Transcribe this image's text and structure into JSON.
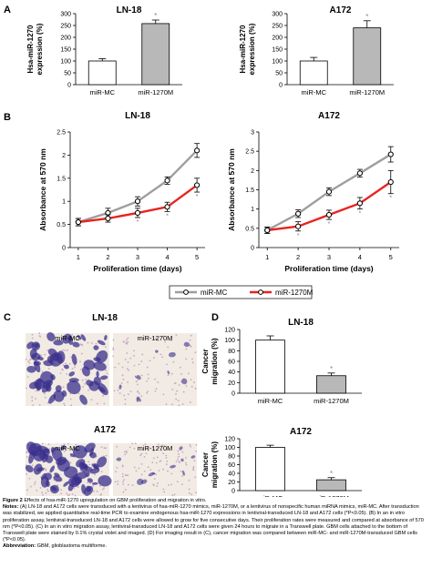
{
  "panel_letters": [
    "A",
    "B",
    "C",
    "D"
  ],
  "colors": {
    "control": "#9e9e9e",
    "treated": "#e8231f",
    "bar_control": "#ffffff",
    "bar_treated": "#b8b8b8",
    "stain": "#3a2f8c"
  },
  "chart_data": [
    {
      "id": "A-LN18",
      "type": "bar",
      "panel": "A",
      "title": "LN-18",
      "ylabel": "Hsa-miR-1270 expression (%)",
      "categories": [
        "miR-MC",
        "miR-1270M"
      ],
      "values": [
        100,
        258
      ],
      "errors": [
        10,
        15
      ],
      "significant": [
        false,
        true
      ],
      "yticks": [
        0,
        50,
        100,
        150,
        200,
        250,
        300
      ],
      "ylim": [
        0,
        300
      ]
    },
    {
      "id": "A-A172",
      "type": "bar",
      "panel": "A",
      "title": "A172",
      "ylabel": "Hsa-miR-1270 expression (%)",
      "categories": [
        "miR-MC",
        "miR-1270M"
      ],
      "values": [
        100,
        240
      ],
      "errors": [
        15,
        30
      ],
      "significant": [
        false,
        true
      ],
      "yticks": [
        0,
        50,
        100,
        150,
        200,
        250,
        300
      ],
      "ylim": [
        0,
        300
      ]
    },
    {
      "id": "B-LN18",
      "type": "line",
      "panel": "B",
      "title": "LN-18",
      "xlabel": "Proliferation time (days)",
      "ylabel": "Absorbance at 570 nm",
      "x": [
        1,
        2,
        3,
        4,
        5
      ],
      "xticks": [
        1,
        2,
        3,
        4,
        5
      ],
      "yticks": [
        0,
        0.5,
        1,
        1.5,
        2,
        2.5
      ],
      "ylim": [
        0,
        2.5
      ],
      "series": [
        {
          "name": "miR-MC",
          "values": [
            0.55,
            0.75,
            1.0,
            1.45,
            2.1
          ],
          "errors": [
            0.08,
            0.1,
            0.1,
            0.08,
            0.15
          ]
        },
        {
          "name": "miR-1270M",
          "values": [
            0.55,
            0.63,
            0.75,
            0.88,
            1.35
          ],
          "errors": [
            0.08,
            0.08,
            0.1,
            0.1,
            0.15
          ],
          "significant": [
            false,
            false,
            true,
            true,
            true
          ]
        }
      ]
    },
    {
      "id": "B-A172",
      "type": "line",
      "panel": "B",
      "title": "A172",
      "xlabel": "Proliferation time (days)",
      "ylabel": "Absorbance at 570 nm",
      "x": [
        1,
        2,
        3,
        4,
        5
      ],
      "xticks": [
        1,
        2,
        3,
        4,
        5
      ],
      "yticks": [
        0,
        0.5,
        1,
        1.5,
        2,
        2.5,
        3
      ],
      "ylim": [
        0,
        3
      ],
      "series": [
        {
          "name": "miR-MC",
          "values": [
            0.45,
            0.88,
            1.45,
            1.93,
            2.42
          ],
          "errors": [
            0.08,
            0.1,
            0.1,
            0.1,
            0.2
          ]
        },
        {
          "name": "miR-1270M",
          "values": [
            0.45,
            0.55,
            0.85,
            1.15,
            1.7
          ],
          "errors": [
            0.08,
            0.12,
            0.12,
            0.15,
            0.3
          ],
          "significant": [
            false,
            true,
            true,
            true,
            true
          ]
        }
      ]
    },
    {
      "id": "D-LN18",
      "type": "bar",
      "panel": "D",
      "title": "LN-18",
      "ylabel": "Cancer migration (%)",
      "categories": [
        "miR-MC",
        "miR-1270M"
      ],
      "values": [
        100,
        33
      ],
      "errors": [
        8,
        5
      ],
      "significant": [
        false,
        true
      ],
      "yticks": [
        0,
        20,
        40,
        60,
        80,
        100,
        120
      ],
      "ylim": [
        0,
        120
      ]
    },
    {
      "id": "D-A172",
      "type": "bar",
      "panel": "D",
      "title": "A172",
      "ylabel": "Cancer migration (%)",
      "categories": [
        "miR-MC",
        "miR-1270M"
      ],
      "values": [
        100,
        25
      ],
      "errors": [
        5,
        5
      ],
      "significant": [
        false,
        true
      ],
      "yticks": [
        0,
        20,
        40,
        60,
        80,
        100,
        120
      ],
      "ylim": [
        0,
        120
      ]
    }
  ],
  "legend": {
    "items": [
      "miR-MC",
      "miR-1270M"
    ]
  },
  "significance_mark": "*",
  "panel_c": {
    "lines": [
      "LN-18",
      "A172"
    ],
    "columns": [
      "miR-MC",
      "miR-1270M"
    ]
  },
  "caption": {
    "figure_label": "Figure 2",
    "figure_title": "Effects of hsa-miR-1270 upregulation on GBM proliferation and migration in vitro.",
    "notes_label": "Notes:",
    "notes_text": "(A) LN-18 and A172 cells were transduced with a lentivirus of hsa-miR-1270 mimics, miR-1270M, or a lentivirus of nonspecific human miRNA mimics, miR-MC. After transduction was stabilized, we applied quantitative real-time PCR to examine endogenous hsa-miR-1270 expressions in lentiviral-transduced LN-18 and A172 cells (*P<0.05). (B) In an in vitro proliferation assay, lentiviral-transduced LN-18 and A172 cells were allowed to grow for five consecutive days. Their proliferation rates were measured and compared at absorbance of 570 nm (*P<0.05). (C) In an in vitro migration assay, lentiviral-transduced LN-18 and A172 cells were given 24 hours to migrate in a Transwell plate. GBM cells attached to the bottom of Transwell plate were stained by 0.1% crystal violet and imaged. (D) For imaging result in (C), cancer migration was compared between miR-MC- and miR-1270M-transduced GBM cells (*P<0.05).",
    "abbr_label": "Abbreviation:",
    "abbr_text": "GBM, glioblastoma multiforme."
  }
}
